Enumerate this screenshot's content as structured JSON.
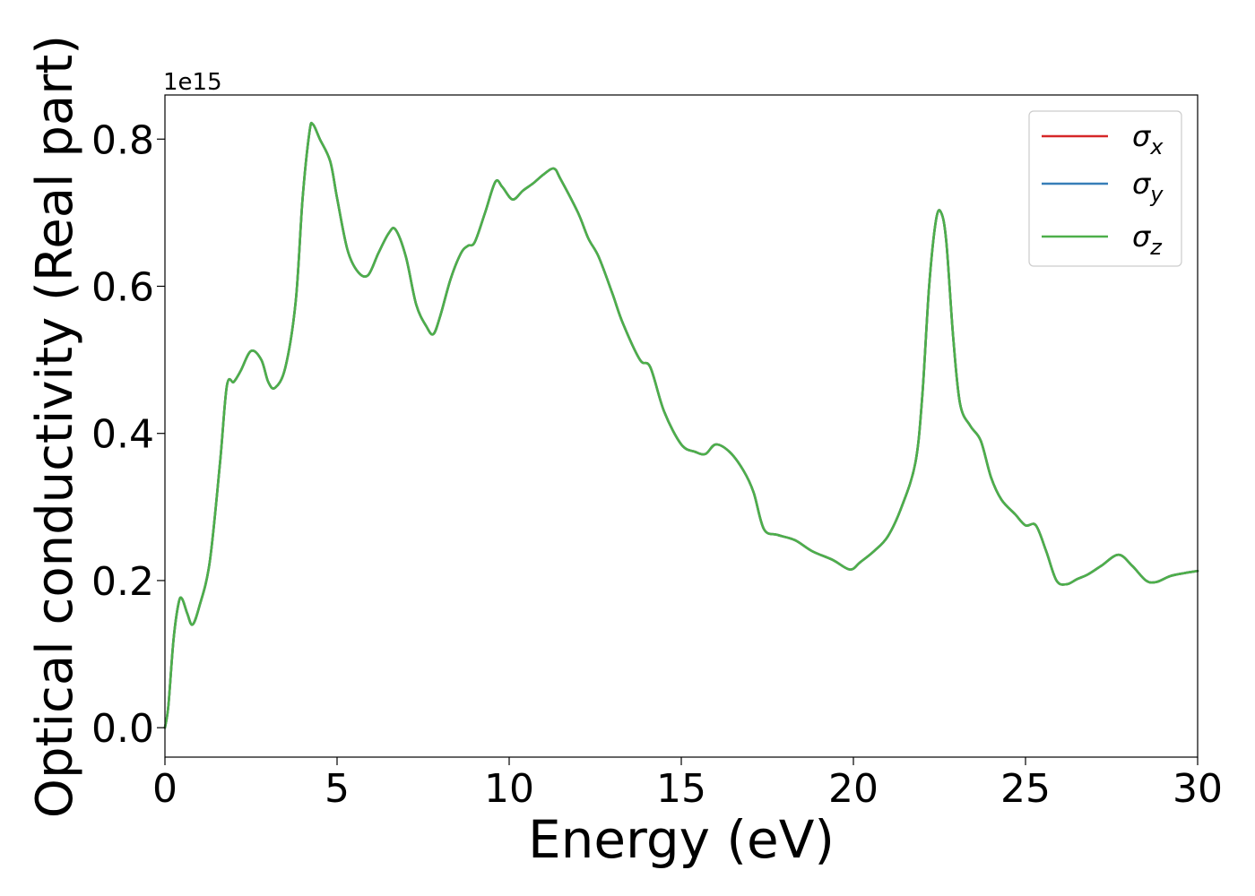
{
  "chart_data": {
    "type": "line",
    "xlabel": "Energy (eV)",
    "ylabel": "Optical conductivity (Real part)",
    "y_offset_label": "1e15",
    "xlim": [
      0,
      30
    ],
    "ylim": [
      -0.04,
      0.86
    ],
    "xticks": [
      0,
      5,
      10,
      15,
      20,
      25,
      30
    ],
    "xtick_labels": [
      "0",
      "5",
      "10",
      "15",
      "20",
      "25",
      "30"
    ],
    "yticks": [
      0.0,
      0.2,
      0.4,
      0.6,
      0.8
    ],
    "ytick_labels": [
      "0.0",
      "0.2",
      "0.4",
      "0.6",
      "0.8"
    ],
    "grid": false,
    "legend_position": "top-right",
    "x": [
      0.0,
      0.1,
      0.25,
      0.4,
      0.5,
      0.65,
      0.8,
      1.0,
      1.3,
      1.6,
      1.8,
      2.0,
      2.2,
      2.5,
      2.8,
      3.0,
      3.2,
      3.5,
      3.8,
      4.0,
      4.2,
      4.3,
      4.5,
      4.8,
      5.0,
      5.3,
      5.6,
      5.9,
      6.2,
      6.5,
      6.7,
      7.0,
      7.3,
      7.6,
      7.8,
      8.0,
      8.3,
      8.6,
      8.8,
      9.0,
      9.3,
      9.6,
      9.8,
      10.1,
      10.4,
      10.7,
      11.0,
      11.3,
      11.5,
      12.0,
      12.3,
      12.6,
      13.0,
      13.3,
      13.8,
      14.1,
      14.5,
      15.0,
      15.4,
      15.7,
      16.0,
      16.4,
      16.8,
      17.1,
      17.4,
      17.8,
      18.3,
      18.8,
      19.4,
      19.9,
      20.2,
      20.6,
      21.0,
      21.4,
      21.8,
      22.0,
      22.2,
      22.4,
      22.55,
      22.7,
      22.9,
      23.1,
      23.4,
      23.7,
      24.0,
      24.3,
      24.7,
      25.0,
      25.3,
      25.6,
      25.9,
      26.2,
      26.5,
      26.8,
      27.2,
      27.7,
      28.1,
      28.5,
      28.8,
      29.2,
      29.6,
      30.0
    ],
    "series": [
      {
        "name": "σ_x",
        "color": "#d62728",
        "values": [
          0.0,
          0.03,
          0.12,
          0.17,
          0.175,
          0.155,
          0.14,
          0.165,
          0.225,
          0.36,
          0.465,
          0.47,
          0.485,
          0.512,
          0.5,
          0.47,
          0.462,
          0.49,
          0.58,
          0.72,
          0.81,
          0.82,
          0.8,
          0.77,
          0.72,
          0.65,
          0.62,
          0.615,
          0.645,
          0.672,
          0.677,
          0.64,
          0.575,
          0.545,
          0.535,
          0.56,
          0.61,
          0.645,
          0.655,
          0.66,
          0.7,
          0.742,
          0.735,
          0.718,
          0.73,
          0.74,
          0.752,
          0.76,
          0.745,
          0.7,
          0.665,
          0.64,
          0.59,
          0.55,
          0.5,
          0.49,
          0.43,
          0.385,
          0.375,
          0.372,
          0.385,
          0.375,
          0.35,
          0.32,
          0.27,
          0.262,
          0.255,
          0.24,
          0.228,
          0.215,
          0.225,
          0.24,
          0.26,
          0.3,
          0.36,
          0.45,
          0.6,
          0.69,
          0.7,
          0.66,
          0.53,
          0.44,
          0.41,
          0.39,
          0.34,
          0.31,
          0.29,
          0.275,
          0.275,
          0.24,
          0.2,
          0.195,
          0.202,
          0.208,
          0.22,
          0.235,
          0.22,
          0.2,
          0.198,
          0.206,
          0.21,
          0.213
        ]
      },
      {
        "name": "σ_y",
        "color": "#377eb8",
        "values": [
          0.0,
          0.03,
          0.12,
          0.17,
          0.175,
          0.155,
          0.14,
          0.165,
          0.225,
          0.36,
          0.465,
          0.47,
          0.485,
          0.512,
          0.5,
          0.47,
          0.462,
          0.49,
          0.58,
          0.72,
          0.81,
          0.82,
          0.8,
          0.77,
          0.72,
          0.65,
          0.62,
          0.615,
          0.645,
          0.672,
          0.677,
          0.64,
          0.575,
          0.545,
          0.535,
          0.56,
          0.61,
          0.645,
          0.655,
          0.66,
          0.7,
          0.742,
          0.735,
          0.718,
          0.73,
          0.74,
          0.752,
          0.76,
          0.745,
          0.7,
          0.665,
          0.64,
          0.59,
          0.55,
          0.5,
          0.49,
          0.43,
          0.385,
          0.375,
          0.372,
          0.385,
          0.375,
          0.35,
          0.32,
          0.27,
          0.262,
          0.255,
          0.24,
          0.228,
          0.215,
          0.225,
          0.24,
          0.26,
          0.3,
          0.36,
          0.45,
          0.6,
          0.69,
          0.7,
          0.66,
          0.53,
          0.44,
          0.41,
          0.39,
          0.34,
          0.31,
          0.29,
          0.275,
          0.275,
          0.24,
          0.2,
          0.195,
          0.202,
          0.208,
          0.22,
          0.235,
          0.22,
          0.2,
          0.198,
          0.206,
          0.21,
          0.213
        ]
      },
      {
        "name": "σ_z",
        "color": "#4daf4a",
        "values": [
          0.0,
          0.03,
          0.12,
          0.17,
          0.175,
          0.155,
          0.14,
          0.165,
          0.225,
          0.36,
          0.465,
          0.47,
          0.485,
          0.512,
          0.5,
          0.47,
          0.462,
          0.49,
          0.58,
          0.72,
          0.81,
          0.82,
          0.8,
          0.77,
          0.72,
          0.65,
          0.62,
          0.615,
          0.645,
          0.672,
          0.677,
          0.64,
          0.575,
          0.545,
          0.535,
          0.56,
          0.61,
          0.645,
          0.655,
          0.66,
          0.7,
          0.742,
          0.735,
          0.718,
          0.73,
          0.74,
          0.752,
          0.76,
          0.745,
          0.7,
          0.665,
          0.64,
          0.59,
          0.55,
          0.5,
          0.49,
          0.43,
          0.385,
          0.375,
          0.372,
          0.385,
          0.375,
          0.35,
          0.32,
          0.27,
          0.262,
          0.255,
          0.24,
          0.228,
          0.215,
          0.225,
          0.24,
          0.26,
          0.3,
          0.36,
          0.45,
          0.6,
          0.69,
          0.7,
          0.66,
          0.53,
          0.44,
          0.41,
          0.39,
          0.34,
          0.31,
          0.29,
          0.275,
          0.275,
          0.24,
          0.2,
          0.195,
          0.202,
          0.208,
          0.22,
          0.235,
          0.22,
          0.2,
          0.198,
          0.206,
          0.21,
          0.213
        ]
      }
    ],
    "legend": [
      {
        "symbol": "σ",
        "subscript": "x",
        "color": "#d62728"
      },
      {
        "symbol": "σ",
        "subscript": "y",
        "color": "#377eb8"
      },
      {
        "symbol": "σ",
        "subscript": "z",
        "color": "#4daf4a"
      }
    ]
  }
}
